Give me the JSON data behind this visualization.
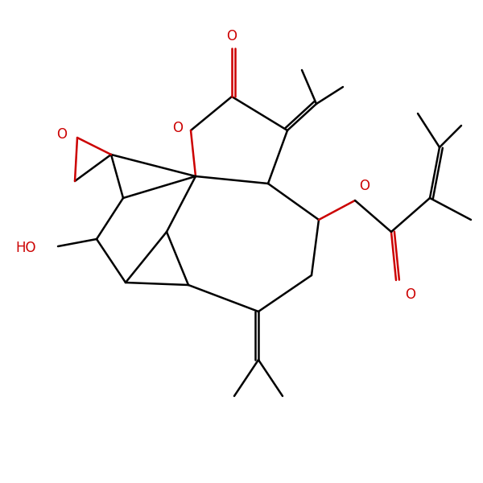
{
  "background": "#ffffff",
  "bond_color": "#000000",
  "oxygen_color": "#cc0000",
  "lw": 1.8,
  "fontsize": 12,
  "figsize": [
    6.0,
    6.0
  ],
  "dpi": 100,
  "xlim": [
    0,
    10
  ],
  "ylim": [
    0,
    10
  ]
}
